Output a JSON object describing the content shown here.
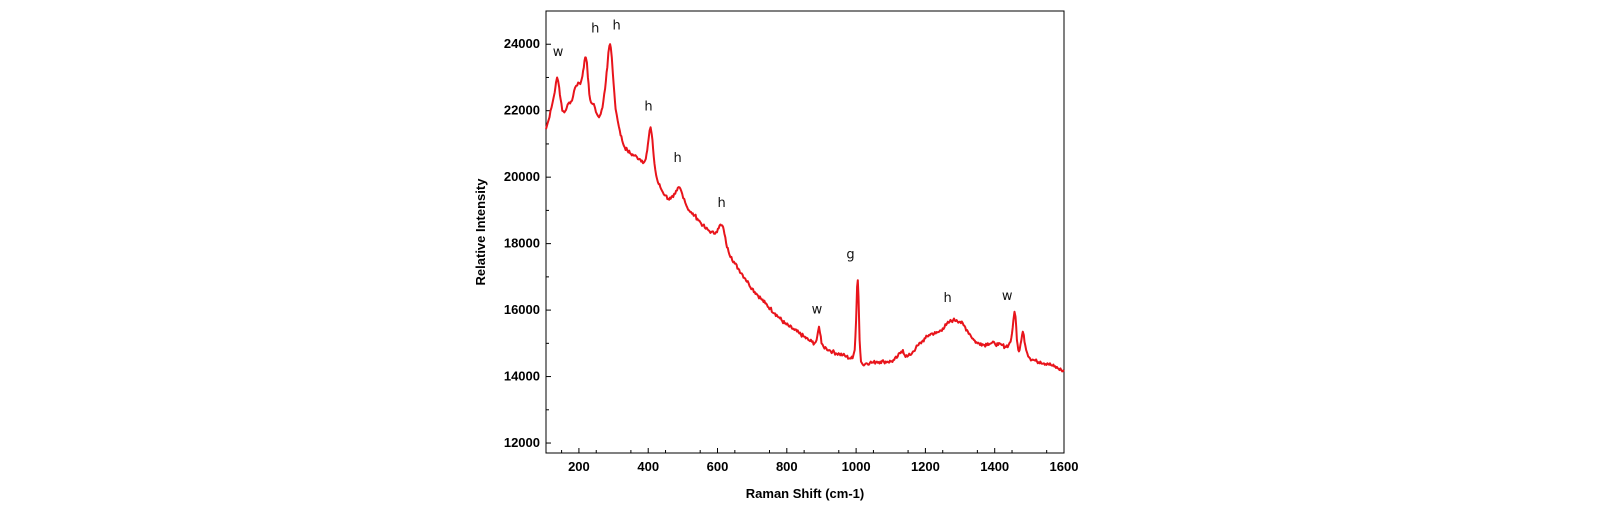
{
  "chart_data": {
    "type": "line",
    "title": "",
    "xlabel": "Raman Shift (cm-1)",
    "ylabel": "Relative Intensity",
    "xlim": [
      105,
      1600
    ],
    "ylim": [
      11700,
      25000
    ],
    "xticks": [
      200,
      400,
      600,
      800,
      1000,
      1200,
      1400,
      1600
    ],
    "yticks": [
      12000,
      14000,
      16000,
      18000,
      20000,
      22000,
      24000
    ],
    "grid": false,
    "legend": "none",
    "series": [
      {
        "color": "#e8141b",
        "points": [
          [
            105,
            21450
          ],
          [
            112,
            21700
          ],
          [
            118,
            22000
          ],
          [
            124,
            22250
          ],
          [
            130,
            22550
          ],
          [
            134,
            22850
          ],
          [
            137,
            23000
          ],
          [
            140,
            22900
          ],
          [
            143,
            22700
          ],
          [
            147,
            22350
          ],
          [
            152,
            22000
          ],
          [
            158,
            21950
          ],
          [
            165,
            22100
          ],
          [
            172,
            22250
          ],
          [
            180,
            22300
          ],
          [
            186,
            22600
          ],
          [
            192,
            22750
          ],
          [
            198,
            22850
          ],
          [
            204,
            22800
          ],
          [
            208,
            22950
          ],
          [
            212,
            23200
          ],
          [
            216,
            23500
          ],
          [
            220,
            23600
          ],
          [
            223,
            23450
          ],
          [
            226,
            23000
          ],
          [
            230,
            22500
          ],
          [
            235,
            22250
          ],
          [
            240,
            22200
          ],
          [
            246,
            22100
          ],
          [
            252,
            21900
          ],
          [
            258,
            21800
          ],
          [
            263,
            21900
          ],
          [
            268,
            22100
          ],
          [
            273,
            22500
          ],
          [
            278,
            22900
          ],
          [
            282,
            23300
          ],
          [
            285,
            23750
          ],
          [
            288,
            23950
          ],
          [
            290,
            24000
          ],
          [
            292,
            23900
          ],
          [
            295,
            23600
          ],
          [
            298,
            23100
          ],
          [
            302,
            22550
          ],
          [
            306,
            22050
          ],
          [
            312,
            21700
          ],
          [
            318,
            21400
          ],
          [
            325,
            21100
          ],
          [
            332,
            20900
          ],
          [
            340,
            20800
          ],
          [
            350,
            20700
          ],
          [
            360,
            20650
          ],
          [
            368,
            20600
          ],
          [
            375,
            20550
          ],
          [
            382,
            20500
          ],
          [
            388,
            20450
          ],
          [
            393,
            20550
          ],
          [
            397,
            20800
          ],
          [
            401,
            21150
          ],
          [
            404,
            21400
          ],
          [
            407,
            21500
          ],
          [
            410,
            21300
          ],
          [
            414,
            20850
          ],
          [
            418,
            20400
          ],
          [
            423,
            20050
          ],
          [
            428,
            19850
          ],
          [
            435,
            19700
          ],
          [
            442,
            19550
          ],
          [
            450,
            19450
          ],
          [
            458,
            19350
          ],
          [
            465,
            19350
          ],
          [
            472,
            19400
          ],
          [
            478,
            19500
          ],
          [
            483,
            19600
          ],
          [
            488,
            19700
          ],
          [
            493,
            19650
          ],
          [
            498,
            19500
          ],
          [
            504,
            19350
          ],
          [
            510,
            19150
          ],
          [
            518,
            19000
          ],
          [
            526,
            18900
          ],
          [
            534,
            18850
          ],
          [
            542,
            18750
          ],
          [
            550,
            18650
          ],
          [
            558,
            18550
          ],
          [
            566,
            18450
          ],
          [
            574,
            18400
          ],
          [
            582,
            18350
          ],
          [
            590,
            18300
          ],
          [
            596,
            18350
          ],
          [
            601,
            18450
          ],
          [
            606,
            18550
          ],
          [
            611,
            18550
          ],
          [
            616,
            18500
          ],
          [
            620,
            18300
          ],
          [
            625,
            18000
          ],
          [
            632,
            17750
          ],
          [
            640,
            17600
          ],
          [
            650,
            17400
          ],
          [
            660,
            17250
          ],
          [
            670,
            17100
          ],
          [
            680,
            16950
          ],
          [
            690,
            16800
          ],
          [
            700,
            16650
          ],
          [
            712,
            16500
          ],
          [
            725,
            16350
          ],
          [
            738,
            16200
          ],
          [
            752,
            16050
          ],
          [
            766,
            15900
          ],
          [
            780,
            15750
          ],
          [
            794,
            15600
          ],
          [
            808,
            15500
          ],
          [
            822,
            15400
          ],
          [
            836,
            15300
          ],
          [
            850,
            15200
          ],
          [
            862,
            15100
          ],
          [
            872,
            15050
          ],
          [
            880,
            15000
          ],
          [
            886,
            15100
          ],
          [
            890,
            15350
          ],
          [
            893,
            15500
          ],
          [
            896,
            15300
          ],
          [
            900,
            15000
          ],
          [
            906,
            14900
          ],
          [
            914,
            14850
          ],
          [
            922,
            14800
          ],
          [
            932,
            14750
          ],
          [
            942,
            14700
          ],
          [
            952,
            14680
          ],
          [
            962,
            14650
          ],
          [
            972,
            14600
          ],
          [
            982,
            14550
          ],
          [
            990,
            14550
          ],
          [
            996,
            14800
          ],
          [
            1000,
            15700
          ],
          [
            1003,
            16700
          ],
          [
            1005,
            16900
          ],
          [
            1007,
            16400
          ],
          [
            1010,
            15100
          ],
          [
            1014,
            14450
          ],
          [
            1020,
            14350
          ],
          [
            1030,
            14400
          ],
          [
            1040,
            14420
          ],
          [
            1050,
            14420
          ],
          [
            1060,
            14450
          ],
          [
            1070,
            14450
          ],
          [
            1080,
            14450
          ],
          [
            1090,
            14450
          ],
          [
            1100,
            14450
          ],
          [
            1110,
            14500
          ],
          [
            1120,
            14600
          ],
          [
            1130,
            14750
          ],
          [
            1135,
            14800
          ],
          [
            1140,
            14650
          ],
          [
            1148,
            14600
          ],
          [
            1156,
            14650
          ],
          [
            1164,
            14750
          ],
          [
            1172,
            14850
          ],
          [
            1180,
            14950
          ],
          [
            1190,
            15050
          ],
          [
            1200,
            15150
          ],
          [
            1210,
            15250
          ],
          [
            1220,
            15300
          ],
          [
            1230,
            15300
          ],
          [
            1240,
            15350
          ],
          [
            1250,
            15450
          ],
          [
            1260,
            15550
          ],
          [
            1270,
            15650
          ],
          [
            1280,
            15700
          ],
          [
            1290,
            15700
          ],
          [
            1300,
            15650
          ],
          [
            1310,
            15550
          ],
          [
            1320,
            15400
          ],
          [
            1330,
            15250
          ],
          [
            1340,
            15100
          ],
          [
            1350,
            15000
          ],
          [
            1360,
            15000
          ],
          [
            1370,
            14950
          ],
          [
            1380,
            15000
          ],
          [
            1390,
            15000
          ],
          [
            1400,
            15000
          ],
          [
            1410,
            14950
          ],
          [
            1420,
            14950
          ],
          [
            1430,
            14900
          ],
          [
            1440,
            14950
          ],
          [
            1446,
            15050
          ],
          [
            1450,
            15300
          ],
          [
            1454,
            15700
          ],
          [
            1457,
            15950
          ],
          [
            1460,
            15800
          ],
          [
            1464,
            15100
          ],
          [
            1468,
            14800
          ],
          [
            1472,
            14800
          ],
          [
            1477,
            15100
          ],
          [
            1481,
            15350
          ],
          [
            1484,
            15250
          ],
          [
            1488,
            14950
          ],
          [
            1494,
            14700
          ],
          [
            1502,
            14550
          ],
          [
            1512,
            14500
          ],
          [
            1522,
            14450
          ],
          [
            1532,
            14450
          ],
          [
            1542,
            14400
          ],
          [
            1552,
            14400
          ],
          [
            1562,
            14350
          ],
          [
            1572,
            14300
          ],
          [
            1582,
            14250
          ],
          [
            1592,
            14200
          ],
          [
            1600,
            14150
          ]
        ]
      }
    ],
    "annotations": [
      {
        "text": "w",
        "x": 140,
        "y": 23650
      },
      {
        "text": "h",
        "x": 247,
        "y": 24350
      },
      {
        "text": "h",
        "x": 309,
        "y": 24450
      },
      {
        "text": "h",
        "x": 401,
        "y": 22000
      },
      {
        "text": "h",
        "x": 485,
        "y": 20450
      },
      {
        "text": "h",
        "x": 612,
        "y": 19100
      },
      {
        "text": "w",
        "x": 887,
        "y": 15900
      },
      {
        "text": "g",
        "x": 984,
        "y": 17550
      },
      {
        "text": "h",
        "x": 1264,
        "y": 16250
      },
      {
        "text": "w",
        "x": 1436,
        "y": 16300
      }
    ]
  }
}
